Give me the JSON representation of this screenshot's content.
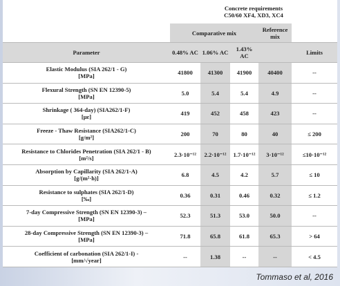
{
  "table": {
    "group_header": [
      "Concrete requirements",
      "C50/60 XF4, XD3, XC4"
    ],
    "subgroups": [
      "Comparative mix",
      "Reference mix"
    ],
    "header": {
      "parameter": "Parameter",
      "mixes": [
        "0.48% AC",
        "1.06% AC",
        "1.43% AC"
      ],
      "limits": "Limits"
    },
    "rows": [
      {
        "name": "Elastic Modulus (SIA 262/1 - G)",
        "unit": "[MPa]",
        "values": [
          "41800",
          "41300",
          "41900",
          "40400"
        ],
        "limit": "--"
      },
      {
        "name": "Flexural Strength (SN EN 12390-5)",
        "unit": "[MPa]",
        "values": [
          "5.0",
          "5.4",
          "5.4",
          "4.9"
        ],
        "limit": "--"
      },
      {
        "name": "Shrinkage ( 364-day) (SIA262/1-F)",
        "unit": "[με]",
        "values": [
          "419",
          "452",
          "458",
          "423"
        ],
        "limit": "--"
      },
      {
        "name": "Freeze - Thaw Resistance (SIA262/1-C)",
        "unit": "[g/m²]",
        "values": [
          "200",
          "70",
          "80",
          "40"
        ],
        "limit": "≤ 200"
      },
      {
        "name": "Resistance to Chlorides Penetration (SIA 262/1 - B)",
        "unit": "[m²/s]",
        "values": [
          "2.3·10⁻¹²",
          "2.2·10⁻¹²",
          "1.7·10⁻¹²",
          "3·10⁻¹²"
        ],
        "limit": "≤10·10⁻¹²"
      },
      {
        "name": "Absorption by Capillarity (SIA 262/1-A)",
        "unit": "[g/(m²·h)]",
        "values": [
          "6.8",
          "4.5",
          "4.2",
          "5.7"
        ],
        "limit": "≤ 10"
      },
      {
        "name": "Resistance to sulphates (SIA 262/1-D)",
        "unit": "[‰]",
        "values": [
          "0.36",
          "0.31",
          "0.46",
          "0.32"
        ],
        "limit": "≤ 1.2"
      },
      {
        "name": "7-day Compressive Strength (SN EN 12390-3) –",
        "unit": "[MPa]",
        "values": [
          "52.3",
          "51.3",
          "53.0",
          "50.0"
        ],
        "limit": "--"
      },
      {
        "name": "28-day Compressive Strength (SN EN 12390-3) –",
        "unit": "[MPa]",
        "values": [
          "71.8",
          "65.8",
          "61.8",
          "65.3"
        ],
        "limit": "> 64"
      },
      {
        "name": "Coefficient of carbonation (SIA 262/1-I) -",
        "unit": "[mm/√year]",
        "values": [
          "--",
          "1.38",
          "--",
          "--"
        ],
        "limit": "< 4.5"
      }
    ]
  },
  "caption": "Tommaso et al, 2016"
}
